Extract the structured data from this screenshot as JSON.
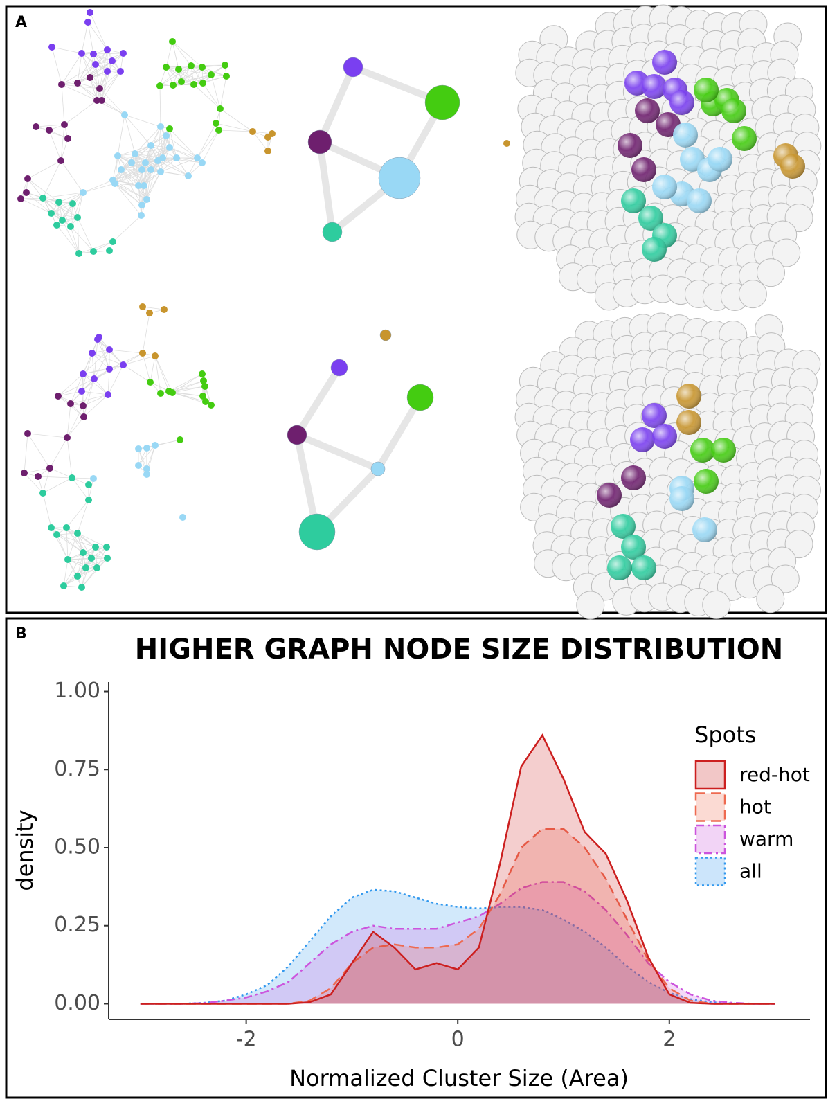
{
  "panel_a": {
    "label": "A"
  },
  "panel_b": {
    "label": "B"
  },
  "chart_data": {
    "type": "density",
    "title": "HIGHER GRAPH NODE SIZE DISTRIBUTION",
    "x_label": "Normalized Cluster Size (Area)",
    "y_label": "density",
    "legend_title": "Spots",
    "legend_position": "right",
    "xlim": [
      -3.3,
      3.33
    ],
    "ylim": [
      -0.05,
      1.03
    ],
    "xticks": [
      -2,
      0,
      2
    ],
    "yticks": [
      {
        "value": 0,
        "label": "0.00"
      },
      {
        "value": 0.25,
        "label": "0.25"
      },
      {
        "value": 0.5,
        "label": "0.50"
      },
      {
        "value": 0.75,
        "label": "0.75"
      },
      {
        "value": 1,
        "label": "1.00"
      }
    ],
    "x": [
      -3,
      -2.8,
      -2.6,
      -2.4,
      -2.2,
      -2,
      -1.8,
      -1.6,
      -1.4,
      -1.2,
      -1,
      -0.8,
      -0.6,
      -0.4,
      -0.2,
      0,
      0.2,
      0.4,
      0.6,
      0.8,
      1,
      1.2,
      1.4,
      1.6,
      1.8,
      2,
      2.2,
      2.4,
      2.6,
      2.8,
      3
    ],
    "series": [
      {
        "name": "red-hot",
        "color": "#cc1f1f",
        "linestyle": "solid",
        "values": [
          0,
          0,
          0,
          0,
          0,
          0,
          0,
          0,
          0.005,
          0.03,
          0.13,
          0.23,
          0.18,
          0.11,
          0.13,
          0.11,
          0.18,
          0.45,
          0.76,
          0.86,
          0.72,
          0.55,
          0.48,
          0.33,
          0.15,
          0.03,
          0.003,
          0,
          0,
          0,
          0
        ]
      },
      {
        "name": "hot",
        "color": "#ee6a50",
        "linestyle": "dashed",
        "values": [
          0,
          0,
          0,
          0,
          0,
          0,
          0,
          0,
          0.01,
          0.05,
          0.13,
          0.18,
          0.19,
          0.18,
          0.18,
          0.19,
          0.24,
          0.35,
          0.5,
          0.56,
          0.56,
          0.5,
          0.4,
          0.27,
          0.14,
          0.05,
          0.01,
          0,
          0,
          0,
          0
        ]
      },
      {
        "name": "warm",
        "color": "#cc55dd",
        "linestyle": "dashdot",
        "values": [
          0,
          0,
          0,
          0.002,
          0.01,
          0.02,
          0.04,
          0.07,
          0.13,
          0.19,
          0.23,
          0.25,
          0.24,
          0.24,
          0.24,
          0.26,
          0.28,
          0.32,
          0.37,
          0.39,
          0.39,
          0.36,
          0.3,
          0.22,
          0.13,
          0.07,
          0.03,
          0.01,
          0.003,
          0,
          0
        ]
      },
      {
        "name": "all",
        "color": "#3399ee",
        "linestyle": "dotted",
        "values": [
          0,
          0,
          0,
          0.003,
          0.01,
          0.03,
          0.06,
          0.12,
          0.2,
          0.28,
          0.34,
          0.365,
          0.36,
          0.34,
          0.32,
          0.31,
          0.305,
          0.31,
          0.31,
          0.3,
          0.27,
          0.23,
          0.18,
          0.12,
          0.07,
          0.035,
          0.015,
          0.005,
          0.001,
          0,
          0
        ]
      }
    ]
  }
}
